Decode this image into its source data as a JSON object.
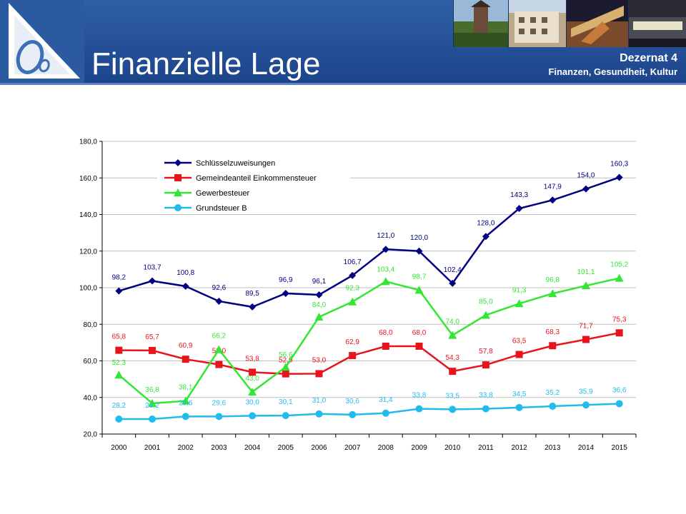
{
  "header": {
    "title": "Finanzielle Lage",
    "department": "Dezernat 4",
    "department_subtitle": "Finanzen, Gesundheit, Kultur",
    "logo_icon": "oe-logo-icon",
    "colors": {
      "background": "#244f97",
      "text": "#ffffff"
    }
  },
  "chart_data": {
    "type": "line",
    "categories": [
      "2000",
      "2001",
      "2002",
      "2003",
      "2004",
      "2005",
      "2006",
      "2007",
      "2008",
      "2009",
      "2010",
      "2011",
      "2012",
      "2013",
      "2014",
      "2015"
    ],
    "ylim": [
      20,
      180
    ],
    "yticks": [
      "20,0",
      "40,0",
      "60,0",
      "80,0",
      "100,0",
      "120,0",
      "140,0",
      "160,0",
      "180,0"
    ],
    "grid": true,
    "legend_position": "top-left",
    "series": [
      {
        "name": "Schlüsselzuweisungen",
        "color": "#000080",
        "marker": "diamond",
        "values": [
          98.2,
          103.7,
          100.8,
          92.6,
          89.5,
          96.9,
          96.1,
          106.7,
          121.0,
          120.0,
          102.4,
          128.0,
          143.3,
          147.9,
          154.0,
          160.3
        ],
        "labels": [
          "98,2",
          "103,7",
          "100,8",
          "92,6",
          "89,5",
          "96,9",
          "96,1",
          "106,7",
          "121,0",
          "120,0",
          "102,4",
          "128,0",
          "143,3",
          "147,9",
          "154,0",
          "160,3"
        ]
      },
      {
        "name": "Gemeindeanteil Einkommensteuer",
        "color": "#e8141c",
        "marker": "square",
        "values": [
          65.8,
          65.7,
          60.9,
          58.0,
          53.8,
          52.9,
          53.0,
          62.9,
          68.0,
          68.0,
          54.3,
          57.8,
          63.5,
          68.3,
          71.7,
          75.3
        ],
        "labels": [
          "65,8",
          "65,7",
          "60,9",
          "58,0",
          "53,8",
          "52,9",
          "53,0",
          "62,9",
          "68,0",
          "68,0",
          "54,3",
          "57,8",
          "63,5",
          "68,3",
          "71,7",
          "75,3"
        ]
      },
      {
        "name": "Gewerbesteuer",
        "color": "#33e633",
        "marker": "triangle",
        "values": [
          52.3,
          36.8,
          38.1,
          66.2,
          43.0,
          56.6,
          84.0,
          92.3,
          103.4,
          98.7,
          74.0,
          85.0,
          91.3,
          96.8,
          101.1,
          105.2
        ],
        "labels": [
          "52,3",
          "36,8",
          "38,1",
          "66,2",
          "43,0",
          "56,6",
          "84,0",
          "92,3",
          "103,4",
          "98,7",
          "74,0",
          "85,0",
          "91,3",
          "96,8",
          "101,1",
          "105,2"
        ]
      },
      {
        "name": "Grundsteuer B",
        "color": "#22bbee",
        "marker": "circle",
        "values": [
          28.2,
          28.2,
          29.6,
          29.6,
          30.0,
          30.1,
          31.0,
          30.6,
          31.4,
          33.8,
          33.5,
          33.8,
          34.5,
          35.2,
          35.9,
          36.6
        ],
        "labels": [
          "28,2",
          "28,2",
          "29,6",
          "29,6",
          "30,0",
          "30,1",
          "31,0",
          "30,6",
          "31,4",
          "33,8",
          "33,5",
          "33,8",
          "34,5",
          "35,2",
          "35,9",
          "36,6"
        ]
      }
    ]
  }
}
